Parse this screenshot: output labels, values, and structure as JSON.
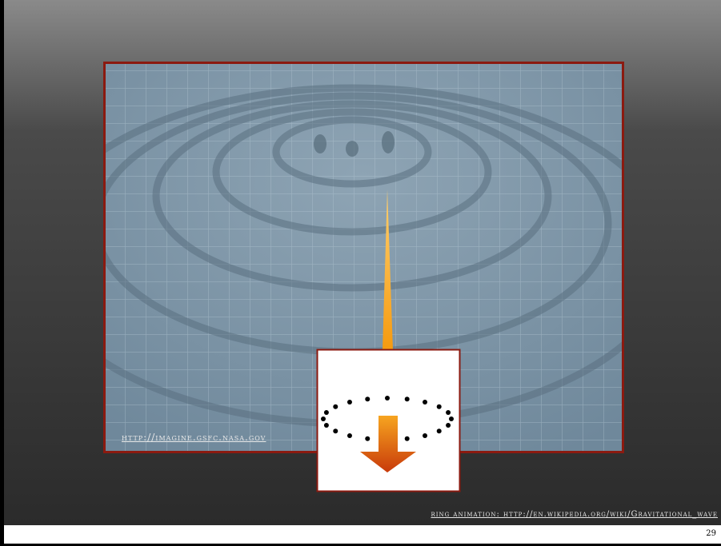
{
  "image_credit": "http://imagine.gsfc.nasa.gov",
  "footer": {
    "credit": "ring animation: http://en.wikipedia.org/wiki/Gravitational_wave",
    "page_number": "29"
  }
}
